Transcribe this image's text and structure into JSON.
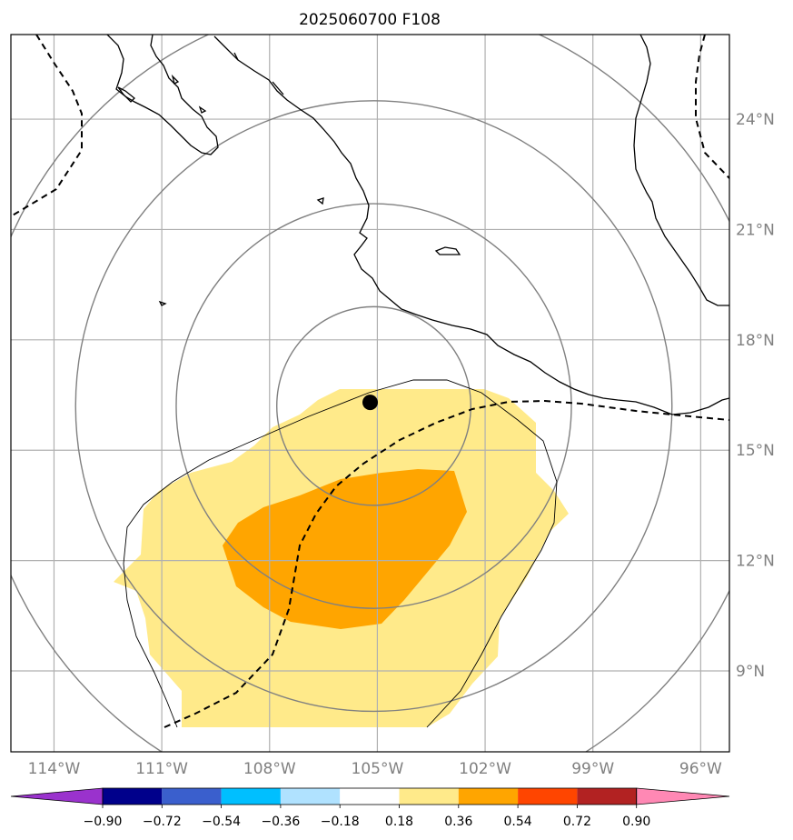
{
  "title": "2025060700 F108",
  "map": {
    "extent": {
      "lon_min": -115.2,
      "lon_max": -95.2,
      "lat_min": 6.8,
      "lat_max": 26.3
    },
    "gridlines": true,
    "lon_ticks": [
      {
        "lon": -114,
        "label": "114°W"
      },
      {
        "lon": -111,
        "label": "111°W"
      },
      {
        "lon": -108,
        "label": "108°W"
      },
      {
        "lon": -105,
        "label": "105°W"
      },
      {
        "lon": -102,
        "label": "102°W"
      },
      {
        "lon": -99,
        "label": "99°W"
      },
      {
        "lon": -96,
        "label": "96°W"
      }
    ],
    "lat_ticks": [
      {
        "lat": 9,
        "label": "9°N"
      },
      {
        "lat": 12,
        "label": "12°N"
      },
      {
        "lat": 15,
        "label": "15°N"
      },
      {
        "lat": 18,
        "label": "18°N"
      },
      {
        "lat": 21,
        "label": "21°N"
      },
      {
        "lat": 24,
        "label": "24°N"
      }
    ],
    "center_marker": {
      "lon": -105.2,
      "lat": 16.3
    },
    "range_rings_deg": [
      2.7,
      5.5,
      8.3,
      11.1
    ],
    "colors": {
      "coast": "#000000",
      "grid": "#b0b0b0",
      "rings": "#808080",
      "fill_low": "#ffea8a",
      "fill_high": "#ffa500"
    }
  },
  "colorbar": {
    "extend": "both",
    "under_color": "#9a32cd",
    "over_color": "#ff88b4",
    "colors": [
      "#00008b",
      "#3a5fcd",
      "#00bfff",
      "#b0e2ff",
      "#ffffff",
      "#ffea8a",
      "#ffa500",
      "#ff4500",
      "#b22222"
    ],
    "bounds": [
      -0.9,
      -0.72,
      -0.54,
      -0.36,
      -0.18,
      0.18,
      0.36,
      0.54,
      0.72,
      0.9
    ],
    "labels": [
      "−0.90",
      "−0.72",
      "−0.54",
      "−0.36",
      "−0.18",
      "0.18",
      "0.36",
      "0.54",
      "0.72",
      "0.90"
    ]
  }
}
